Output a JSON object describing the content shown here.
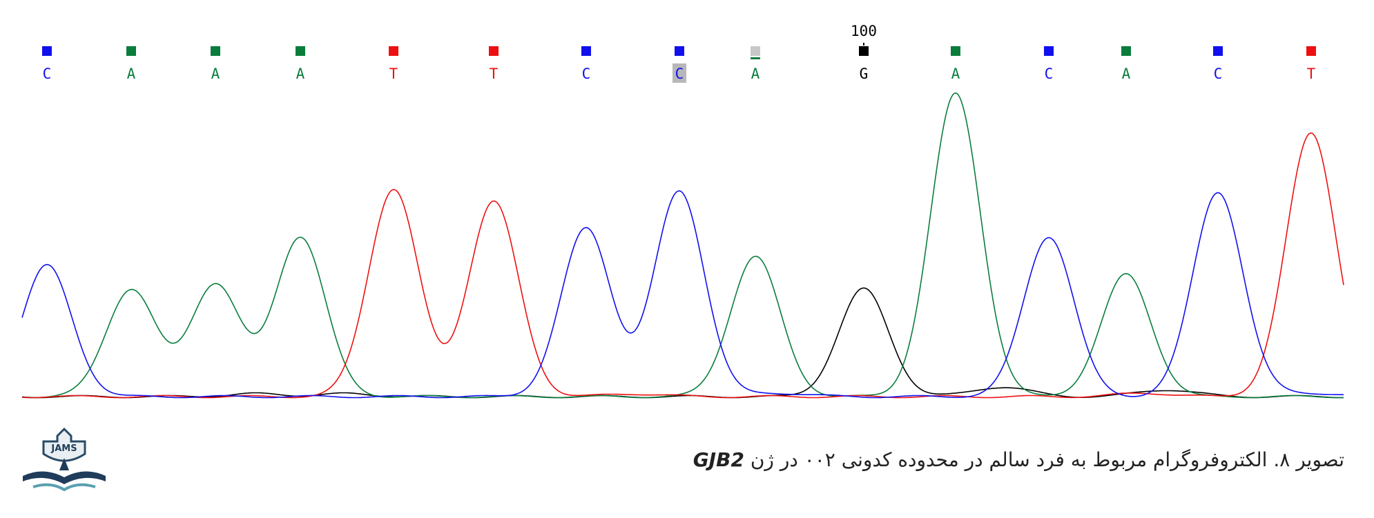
{
  "figure": {
    "position_label": "100",
    "bases": [
      "C",
      "A",
      "A",
      "A",
      "T",
      "T",
      "C",
      "C",
      "A",
      "G",
      "A",
      "C",
      "A",
      "C",
      "T"
    ],
    "colors": {
      "A": "#0a7d3c",
      "C": "#1010ee",
      "G": "#000000",
      "T": "#ee1010",
      "N": "#c8c8c8"
    },
    "caption": "تصویر ۸. الکتروفروگرام مربوط به فرد سالم در محدوده کدونی ۰۰۲ در ژن",
    "gene": "GJB2"
  },
  "logo": {
    "text": "JAMS"
  }
}
